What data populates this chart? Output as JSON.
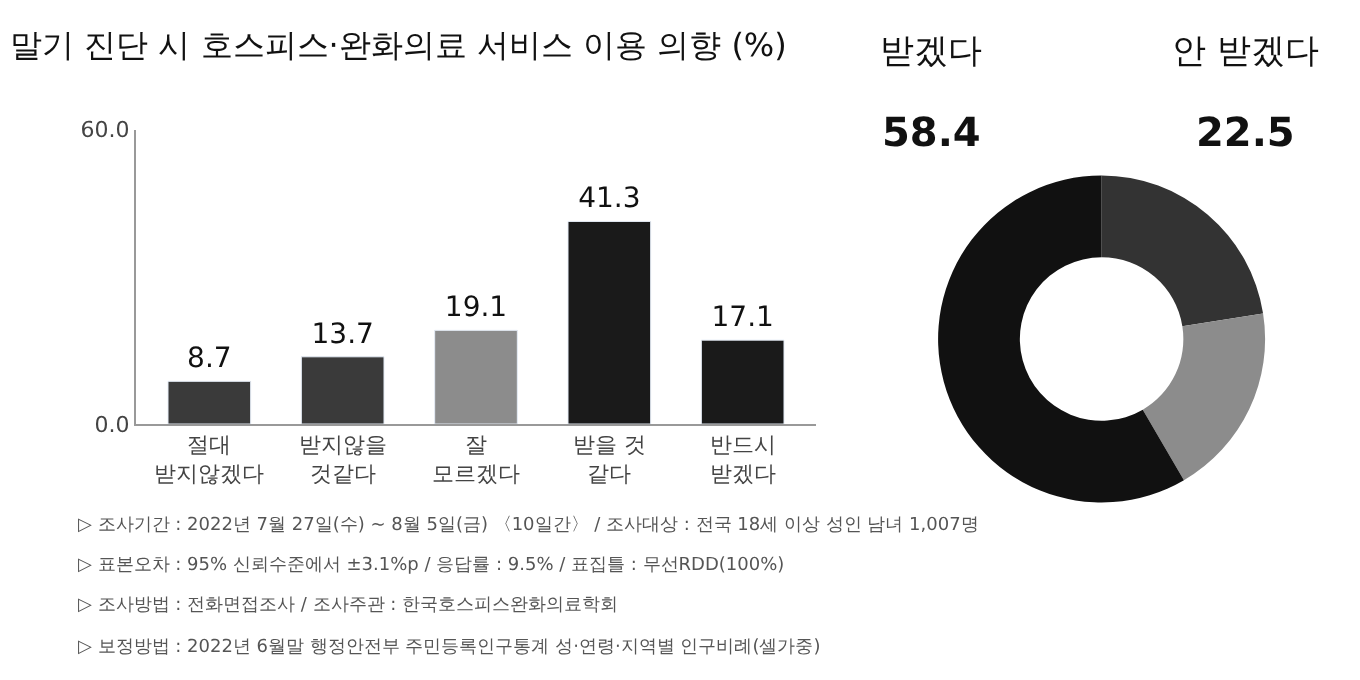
{
  "chart_data": [
    {
      "type": "bar",
      "title": "말기 진단 시 호스피스·완화의료 서비스 이용 의향 (%)",
      "categories": [
        "절대\n받지않겠다",
        "받지않을\n것같다",
        "잘\n모르겠다",
        "받을 것\n같다",
        "반드시\n받겠다"
      ],
      "values": [
        8.7,
        13.7,
        19.1,
        41.3,
        17.1
      ],
      "colors": [
        "#3a3a3a",
        "#3a3a3a",
        "#8c8c8c",
        "#1a1a1a",
        "#1a1a1a"
      ],
      "ylim": [
        0,
        60
      ],
      "yticks": [
        {
          "value": 0,
          "label": "0.0"
        },
        {
          "value": 60,
          "label": "60.0"
        }
      ],
      "data_labels": true,
      "annotations": [
        "▷ 조사기간 : 2022년 7월 27일(수) ~ 8월 5일(금) 〈10일간〉 / 조사대상 : 전국 18세 이상 성인 남녀 1,007명",
        "▷ 표본오차 : 95% 신뢰수준에서 ±3.1%p / 응답률 : 9.5% / 표집틀 : 무선RDD(100%)",
        "▷ 조사방법 : 전화면접조사 / 조사주관 : 한국호스피스완화의료학회",
        "▷ 보정방법 : 2022년 6월말 행정안전부 주민등록인구통계 성·연령·지역별 인구비례(셀가중)"
      ]
    },
    {
      "type": "donut",
      "categories": [
        "안 받겠다",
        null,
        "받겠다"
      ],
      "values": [
        22.5,
        19.1,
        58.4
      ],
      "colors": [
        "#333333",
        "#8c8c8c",
        "#111111"
      ],
      "value_labels": [
        "22.5",
        null,
        "58.4"
      ]
    }
  ]
}
